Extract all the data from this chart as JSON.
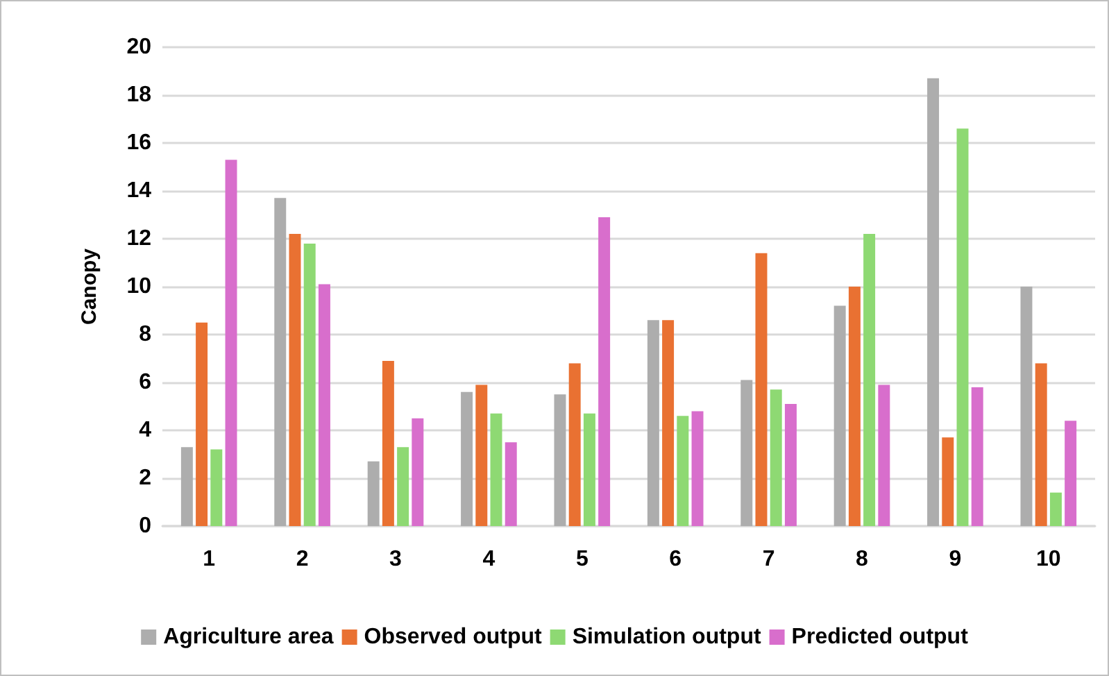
{
  "chart_data": {
    "type": "bar",
    "ylabel": "Canopy",
    "categories": [
      "1",
      "2",
      "3",
      "4",
      "5",
      "6",
      "7",
      "8",
      "9",
      "10"
    ],
    "series": [
      {
        "name": "Agriculture area",
        "color": "#adadad",
        "values": [
          3.3,
          13.7,
          2.7,
          5.6,
          5.5,
          8.6,
          6.1,
          9.2,
          18.7,
          10.0
        ]
      },
      {
        "name": "Observed output",
        "color": "#e97132",
        "values": [
          8.5,
          12.2,
          6.9,
          5.9,
          6.8,
          8.6,
          11.4,
          10.0,
          3.7,
          6.8
        ]
      },
      {
        "name": "Simulation output",
        "color": "#8ed973",
        "values": [
          3.2,
          11.8,
          3.3,
          4.7,
          4.7,
          4.6,
          5.7,
          12.2,
          16.6,
          1.4
        ]
      },
      {
        "name": "Predicted output",
        "color": "#d86ecc",
        "values": [
          15.3,
          10.1,
          4.5,
          3.5,
          12.9,
          4.8,
          5.1,
          5.9,
          5.8,
          4.4
        ]
      }
    ],
    "ylim": [
      0,
      20
    ],
    "yticks": [
      0,
      2,
      4,
      6,
      8,
      10,
      12,
      14,
      16,
      18,
      20
    ],
    "grid": "y",
    "legend": "bottom"
  }
}
